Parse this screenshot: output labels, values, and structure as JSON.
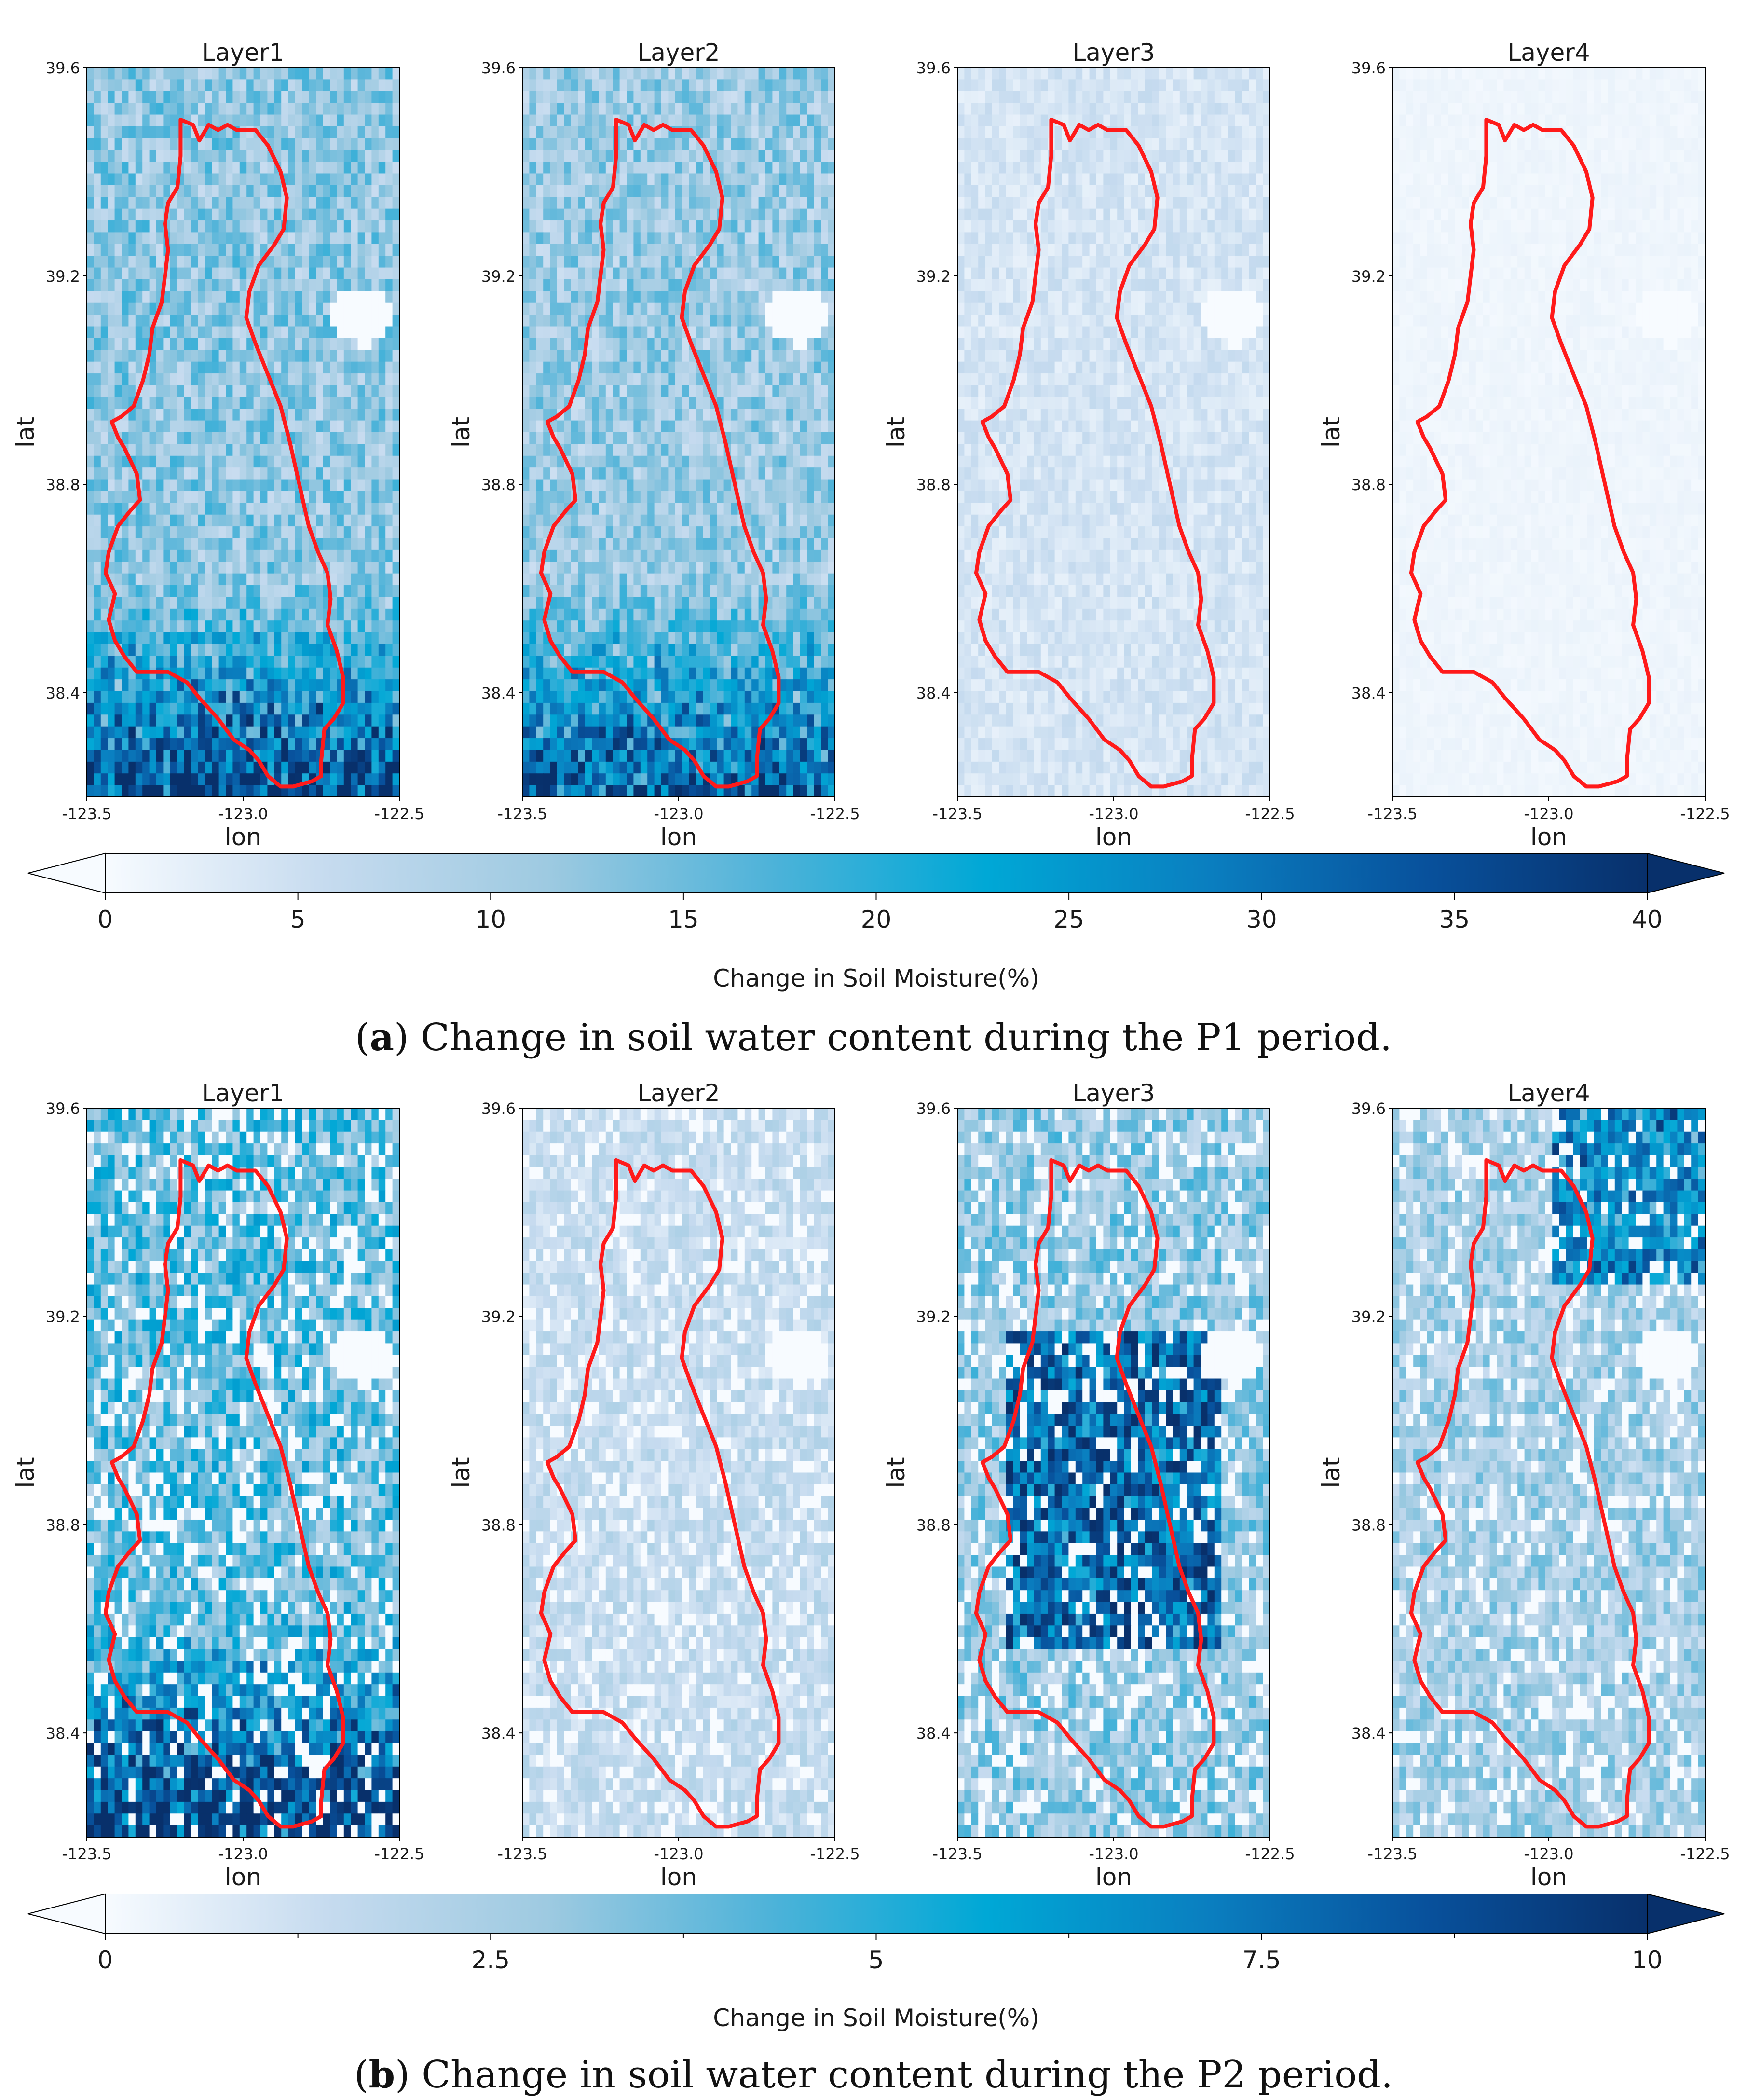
{
  "figure": {
    "panels": [
      {
        "caption_letter": "a",
        "caption_text": "Change in soil water content during the P1 period.",
        "colorbar": {
          "label": "Change in Soil Moisture(%)",
          "ticks": [
            "0",
            "5",
            "10",
            "15",
            "20",
            "25",
            "30",
            "35",
            "40"
          ],
          "tick_values": [
            0,
            5,
            10,
            15,
            20,
            25,
            30,
            35,
            40
          ],
          "minor_ticks": [],
          "range": [
            0,
            40
          ],
          "extend": "both"
        }
      },
      {
        "caption_letter": "b",
        "caption_text": "Change in soil water content during the P2 period.",
        "colorbar": {
          "label": "Change in Soil Moisture(%)",
          "ticks": [
            "0",
            "2.5",
            "5",
            "7.5",
            "10"
          ],
          "tick_values": [
            0,
            2.5,
            5,
            7.5,
            10
          ],
          "minor_ticks": [
            1.25,
            3.75,
            6.25,
            8.75
          ],
          "range": [
            0,
            10
          ],
          "extend": "both"
        }
      }
    ],
    "colors": {
      "boundary": "#ff1a1a",
      "colormap": [
        "#f7fbff",
        "#c6dbef",
        "#9ecae1",
        "#4fb3d9",
        "#00a8d6",
        "#0a7fc0",
        "#08519c",
        "#08306b"
      ]
    }
  },
  "chart_data": [
    {
      "type": "heatmap",
      "title": "Layer1",
      "xlabel": "lon",
      "ylabel": "lat",
      "xlim": [
        -123.5,
        -122.5
      ],
      "ylim": [
        38.2,
        39.6
      ],
      "xticks": [
        "-123.5",
        "-123.0",
        "-122.5"
      ],
      "yticks": [
        "38.4",
        "38.8",
        "39.2",
        "39.6"
      ],
      "colorbar_range": [
        0,
        40
      ],
      "mean_change_percent": 12,
      "high_change_region": "south",
      "hotspot_percent": 32
    },
    {
      "type": "heatmap",
      "title": "Layer2",
      "xlabel": "lon",
      "ylabel": "lat",
      "xlim": [
        -123.5,
        -122.5
      ],
      "ylim": [
        38.2,
        39.6
      ],
      "xticks": [
        "-123.5",
        "-123.0",
        "-122.5"
      ],
      "yticks": [
        "38.4",
        "38.8",
        "39.2",
        "39.6"
      ],
      "colorbar_range": [
        0,
        40
      ],
      "mean_change_percent": 11,
      "high_change_region": "south",
      "hotspot_percent": 30
    },
    {
      "type": "heatmap",
      "title": "Layer3",
      "xlabel": "lon",
      "ylabel": "lat",
      "xlim": [
        -123.5,
        -122.5
      ],
      "ylim": [
        38.2,
        39.6
      ],
      "xticks": [
        "-123.5",
        "-123.0",
        "-122.5"
      ],
      "yticks": [
        "38.4",
        "38.8",
        "39.2",
        "39.6"
      ],
      "colorbar_range": [
        0,
        40
      ],
      "mean_change_percent": 4,
      "high_change_region": "none",
      "hotspot_percent": 0
    },
    {
      "type": "heatmap",
      "title": "Layer4",
      "xlabel": "lon",
      "ylabel": "lat",
      "xlim": [
        -123.5,
        -122.5
      ],
      "ylim": [
        38.2,
        39.6
      ],
      "xticks": [
        "-123.5",
        "-123.0",
        "-122.5"
      ],
      "yticks": [
        "38.4",
        "38.8",
        "39.2",
        "39.6"
      ],
      "colorbar_range": [
        0,
        40
      ],
      "mean_change_percent": 1,
      "high_change_region": "none",
      "hotspot_percent": 0
    },
    {
      "type": "heatmap",
      "title": "Layer1",
      "xlabel": "lon",
      "ylabel": "lat",
      "xlim": [
        -123.5,
        -122.5
      ],
      "ylim": [
        38.2,
        39.6
      ],
      "xticks": [
        "-123.5",
        "-123.0",
        "-122.5"
      ],
      "yticks": [
        "38.4",
        "38.8",
        "39.2",
        "39.6"
      ],
      "colorbar_range": [
        0,
        10
      ],
      "mean_change_percent": 4,
      "high_change_region": "south",
      "hotspot_percent": 8
    },
    {
      "type": "heatmap",
      "title": "Layer2",
      "xlabel": "lon",
      "ylabel": "lat",
      "xlim": [
        -123.5,
        -122.5
      ],
      "ylim": [
        38.2,
        39.6
      ],
      "xticks": [
        "-123.5",
        "-123.0",
        "-122.5"
      ],
      "yticks": [
        "38.4",
        "38.8",
        "39.2",
        "39.6"
      ],
      "colorbar_range": [
        0,
        10
      ],
      "mean_change_percent": 1.5,
      "high_change_region": "none",
      "hotspot_percent": 0
    },
    {
      "type": "heatmap",
      "title": "Layer3",
      "xlabel": "lon",
      "ylabel": "lat",
      "xlim": [
        -123.5,
        -122.5
      ],
      "ylim": [
        38.2,
        39.6
      ],
      "xticks": [
        "-123.5",
        "-123.0",
        "-122.5"
      ],
      "yticks": [
        "38.4",
        "38.8",
        "39.2",
        "39.6"
      ],
      "colorbar_range": [
        0,
        10
      ],
      "mean_change_percent": 3,
      "high_change_region": "center",
      "hotspot_percent": 6
    },
    {
      "type": "heatmap",
      "title": "Layer4",
      "xlabel": "lon",
      "ylabel": "lat",
      "xlim": [
        -123.5,
        -122.5
      ],
      "ylim": [
        38.2,
        39.6
      ],
      "xticks": [
        "-123.5",
        "-123.0",
        "-122.5"
      ],
      "yticks": [
        "38.4",
        "38.8",
        "39.2",
        "39.6"
      ],
      "colorbar_range": [
        0,
        10
      ],
      "mean_change_percent": 2.5,
      "high_change_region": "north",
      "hotspot_percent": 5
    }
  ]
}
